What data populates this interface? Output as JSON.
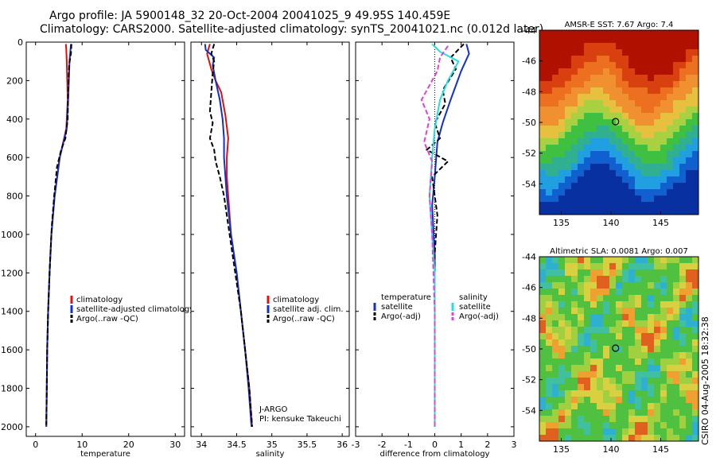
{
  "header": {
    "title_line1": "Argo profile: JA 5900148_32 20-Oct-2004 20041025_9 49.95S 140.459E",
    "title_line2": "Climatology: CARS2000. Satellite-adjusted climatology: synTS_20041021.nc (0.012d later)"
  },
  "side_label": "CSIRO 04-Aug-2005 18:32:38",
  "chart_data": [
    {
      "id": "temperature",
      "type": "line",
      "xlabel": "temperature",
      "ylabel": "",
      "xlim": [
        -2,
        32
      ],
      "ylim": [
        2050,
        0
      ],
      "xticks": [
        0,
        10,
        20,
        30
      ],
      "yticks": [
        0,
        200,
        400,
        600,
        800,
        1000,
        1200,
        1400,
        1600,
        1800,
        2000
      ],
      "legend": {
        "placement": "center-right",
        "entries": [
          {
            "label": "climatology",
            "color": "#e01010",
            "dash": "solid"
          },
          {
            "label": "satellite-adjusted climatology",
            "color": "#1030d0",
            "dash": "solid"
          },
          {
            "label": "Argo(..raw -QC)",
            "color": "#000000",
            "dash": "dashed"
          }
        ]
      },
      "series": [
        {
          "name": "climatology",
          "color": "#e01010",
          "dash": "solid",
          "width": 2,
          "points": [
            [
              6.5,
              10
            ],
            [
              6.6,
              40
            ],
            [
              6.7,
              100
            ],
            [
              6.9,
              300
            ],
            [
              6.6,
              450
            ],
            [
              5.2,
              600
            ],
            [
              4.1,
              800
            ],
            [
              3.4,
              1000
            ],
            [
              3.0,
              1200
            ],
            [
              2.7,
              1400
            ],
            [
              2.5,
              1600
            ],
            [
              2.4,
              1800
            ],
            [
              2.3,
              2000
            ]
          ]
        },
        {
          "name": "satellite-adjusted climatology",
          "color": "#1030d0",
          "dash": "solid",
          "width": 2,
          "points": [
            [
              7.6,
              10
            ],
            [
              7.5,
              40
            ],
            [
              7.3,
              100
            ],
            [
              7.0,
              300
            ],
            [
              6.7,
              450
            ],
            [
              5.2,
              600
            ],
            [
              4.1,
              800
            ],
            [
              3.4,
              1000
            ],
            [
              3.0,
              1200
            ],
            [
              2.7,
              1400
            ],
            [
              2.5,
              1600
            ],
            [
              2.4,
              1800
            ],
            [
              2.3,
              2000
            ]
          ]
        },
        {
          "name": "Argo(..raw -QC)",
          "color": "#000000",
          "dash": "dashed",
          "width": 2,
          "points": [
            [
              7.7,
              10
            ],
            [
              7.6,
              60
            ],
            [
              7.2,
              120
            ],
            [
              7.0,
              250
            ],
            [
              6.9,
              400
            ],
            [
              6.4,
              500
            ],
            [
              5.5,
              560
            ],
            [
              4.6,
              650
            ],
            [
              4.0,
              800
            ],
            [
              3.5,
              950
            ],
            [
              3.1,
              1150
            ],
            [
              2.7,
              1400
            ],
            [
              2.5,
              1600
            ],
            [
              2.4,
              1800
            ],
            [
              2.3,
              1990
            ]
          ]
        }
      ]
    },
    {
      "id": "salinity",
      "type": "line",
      "xlabel": "salinity",
      "ylabel": "",
      "xlim": [
        33.85,
        36.1
      ],
      "ylim": [
        2050,
        0
      ],
      "xticks": [
        34,
        34.5,
        35,
        35.5,
        36
      ],
      "yticks": [
        0,
        200,
        400,
        600,
        800,
        1000,
        1200,
        1400,
        1600,
        1800,
        2000
      ],
      "legend": {
        "placement": "center-right",
        "entries": [
          {
            "label": "climatology",
            "color": "#e01010",
            "dash": "solid"
          },
          {
            "label": "satellite adj. clim.",
            "color": "#1030d0",
            "dash": "solid"
          },
          {
            "label": "Argo(..raw -QC)",
            "color": "#000000",
            "dash": "dashed"
          }
        ]
      },
      "annotations": [
        "J-ARGO",
        "PI: kensuke Takeuchi"
      ],
      "series": [
        {
          "name": "climatology",
          "color": "#e01010",
          "dash": "solid",
          "width": 2,
          "points": [
            [
              34.12,
              10
            ],
            [
              34.08,
              60
            ],
            [
              34.14,
              140
            ],
            [
              34.2,
              200
            ],
            [
              34.28,
              260
            ],
            [
              34.34,
              380
            ],
            [
              34.38,
              500
            ],
            [
              34.36,
              600
            ],
            [
              34.36,
              700
            ],
            [
              34.38,
              800
            ],
            [
              34.42,
              1000
            ],
            [
              34.5,
              1200
            ],
            [
              34.56,
              1400
            ],
            [
              34.62,
              1600
            ],
            [
              34.68,
              1800
            ],
            [
              34.72,
              2000
            ]
          ]
        },
        {
          "name": "satellite adj. clim.",
          "color": "#1030d0",
          "dash": "solid",
          "width": 2,
          "points": [
            [
              34.05,
              10
            ],
            [
              34.06,
              40
            ],
            [
              34.18,
              80
            ],
            [
              34.16,
              120
            ],
            [
              34.2,
              200
            ],
            [
              34.26,
              300
            ],
            [
              34.3,
              400
            ],
            [
              34.32,
              500
            ],
            [
              34.32,
              600
            ],
            [
              34.36,
              800
            ],
            [
              34.42,
              1000
            ],
            [
              34.5,
              1200
            ],
            [
              34.56,
              1400
            ],
            [
              34.62,
              1600
            ],
            [
              34.67,
              1800
            ],
            [
              34.71,
              2000
            ]
          ]
        },
        {
          "name": "Argo(..raw -QC)",
          "color": "#000000",
          "dash": "dashed",
          "width": 2,
          "points": [
            [
              34.18,
              10
            ],
            [
              34.14,
              60
            ],
            [
              34.18,
              100
            ],
            [
              34.16,
              160
            ],
            [
              34.14,
              260
            ],
            [
              34.12,
              360
            ],
            [
              34.16,
              420
            ],
            [
              34.12,
              500
            ],
            [
              34.18,
              560
            ],
            [
              34.2,
              620
            ],
            [
              34.26,
              700
            ],
            [
              34.32,
              800
            ],
            [
              34.4,
              1000
            ],
            [
              34.48,
              1200
            ],
            [
              34.56,
              1400
            ],
            [
              34.62,
              1600
            ],
            [
              34.68,
              1800
            ],
            [
              34.72,
              2000
            ]
          ]
        }
      ]
    },
    {
      "id": "difference",
      "type": "line",
      "xlabel": "difference from climatology",
      "ylabel": "",
      "xlim": [
        -3,
        3
      ],
      "ylim": [
        2050,
        0
      ],
      "xticks": [
        -3,
        -2,
        -1,
        0,
        1,
        2,
        3
      ],
      "yticks": [
        0,
        200,
        400,
        600,
        800,
        1000,
        1200,
        1400,
        1600,
        1800,
        2000
      ],
      "legend": {
        "placement": "center",
        "entries": [
          {
            "label": "temperature",
            "color": "#ffffff",
            "dash": "none"
          },
          {
            "label": "satellite",
            "color": "#1030d0",
            "dash": "solid"
          },
          {
            "label": "Argo(-adj)",
            "color": "#000000",
            "dash": "dashed"
          },
          {
            "label": "salinity",
            "color": "#ffffff",
            "dash": "none"
          },
          {
            "label": "satellite",
            "color": "#20e0e0",
            "dash": "solid"
          },
          {
            "label": "Argo(-adj)",
            "color": "#e040e0",
            "dash": "dashed"
          }
        ]
      },
      "series": [
        {
          "name": "zero",
          "color": "#000000",
          "dash": "dotted",
          "width": 1,
          "points": [
            [
              0,
              0
            ],
            [
              0,
              2000
            ]
          ]
        },
        {
          "name": "temperature satellite",
          "color": "#1030d0",
          "dash": "solid",
          "width": 2,
          "points": [
            [
              1.2,
              10
            ],
            [
              1.3,
              60
            ],
            [
              1.0,
              150
            ],
            [
              0.6,
              300
            ],
            [
              0.3,
              420
            ],
            [
              0.1,
              520
            ],
            [
              0,
              700
            ],
            [
              -0.1,
              850
            ],
            [
              0,
              1100
            ],
            [
              0,
              1400
            ],
            [
              0,
              2000
            ]
          ]
        },
        {
          "name": "temperature Argo(-adj)",
          "color": "#000000",
          "dash": "dashed",
          "width": 2,
          "points": [
            [
              1.1,
              10
            ],
            [
              0.6,
              80
            ],
            [
              0.8,
              140
            ],
            [
              0.3,
              250
            ],
            [
              0.4,
              320
            ],
            [
              0,
              420
            ],
            [
              0.2,
              500
            ],
            [
              -0.3,
              560
            ],
            [
              0.5,
              620
            ],
            [
              -0.1,
              700
            ],
            [
              0,
              800
            ],
            [
              0.1,
              900
            ],
            [
              0,
              1100
            ],
            [
              0,
              1400
            ],
            [
              0,
              2000
            ]
          ]
        },
        {
          "name": "salinity satellite",
          "color": "#20e0e0",
          "dash": "solid",
          "width": 2,
          "points": [
            [
              -0.1,
              10
            ],
            [
              0.2,
              50
            ],
            [
              0.9,
              100
            ],
            [
              0.5,
              200
            ],
            [
              0.2,
              300
            ],
            [
              0,
              450
            ],
            [
              -0.1,
              600
            ],
            [
              -0.2,
              800
            ],
            [
              -0.1,
              1000
            ],
            [
              0,
              1200
            ],
            [
              0,
              2000
            ]
          ]
        },
        {
          "name": "salinity Argo(-adj)",
          "color": "#e040e0",
          "dash": "dashed",
          "width": 2,
          "points": [
            [
              0.5,
              20
            ],
            [
              0.2,
              80
            ],
            [
              0.1,
              150
            ],
            [
              -0.5,
              300
            ],
            [
              -0.2,
              400
            ],
            [
              -0.4,
              520
            ],
            [
              -0.1,
              620
            ],
            [
              -0.2,
              800
            ],
            [
              -0.1,
              1000
            ],
            [
              -0.05,
              1200
            ],
            [
              0,
              1400
            ],
            [
              0,
              2000
            ]
          ]
        }
      ]
    },
    {
      "id": "sst-map",
      "type": "heatmap",
      "title": "AMSR-E SST: 7.67 Argo: 7.4",
      "xlim": [
        132.8,
        148.8
      ],
      "ylim": [
        -56,
        -44
      ],
      "xticks": [
        135,
        140,
        145
      ],
      "yticks": [
        -44,
        -46,
        -48,
        -50,
        -52,
        -54
      ],
      "marker": {
        "lon": 140.459,
        "lat": -49.95
      }
    },
    {
      "id": "sla-map",
      "type": "heatmap",
      "title": "Altimetric SLA: 0.0081 Argo: 0.007",
      "xlim": [
        132.8,
        148.8
      ],
      "ylim": [
        -56,
        -44
      ],
      "xticks": [
        135,
        140,
        145
      ],
      "yticks": [
        -44,
        -46,
        -48,
        -50,
        -52,
        -54
      ],
      "marker": {
        "lon": 140.459,
        "lat": -49.95
      }
    }
  ]
}
